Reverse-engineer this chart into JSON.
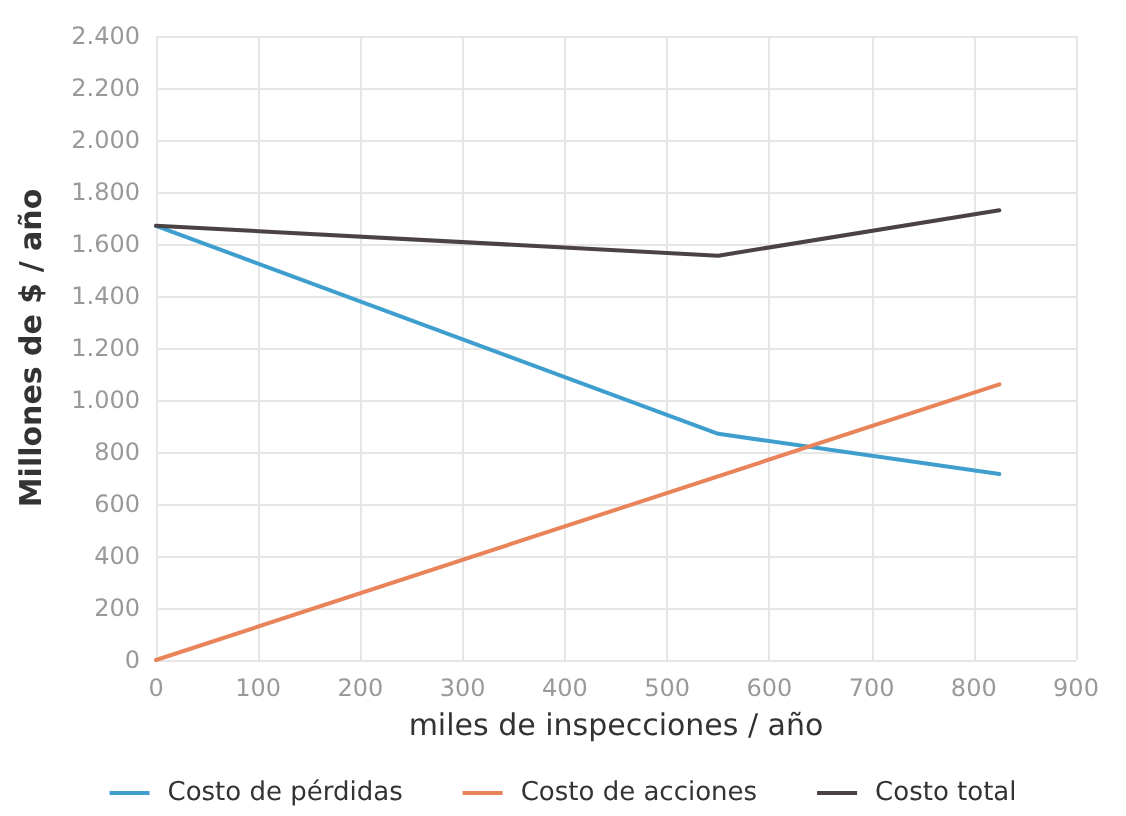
{
  "chart_data": {
    "type": "line",
    "xlabel": "miles de inspecciones / año",
    "ylabel": "Millones de $ / año",
    "xlim": [
      0,
      900
    ],
    "xticks": [
      0,
      100,
      200,
      300,
      400,
      500,
      600,
      700,
      800,
      900
    ],
    "ylim": [
      0,
      2400
    ],
    "yticks": [
      0,
      200,
      400,
      600,
      800,
      {
        "value": 1000,
        "label": "1.000"
      },
      {
        "value": 1200,
        "label": "1.200"
      },
      {
        "value": 1400,
        "label": "1.400"
      },
      {
        "value": 1600,
        "label": "1.600"
      },
      {
        "value": 1800,
        "label": "1.800"
      },
      {
        "value": 2000,
        "label": "2.000"
      },
      {
        "value": 2200,
        "label": "2.200"
      },
      {
        "value": 2400,
        "label": "2.400"
      }
    ],
    "series": [
      {
        "name": "Costo de pérdidas",
        "color": "#3e9fcf",
        "x": [
          0,
          550,
          825
        ],
        "values": [
          1670,
          870,
          715
        ]
      },
      {
        "name": "Costo de acciones",
        "color": "#e8835a",
        "x": [
          0,
          825
        ],
        "values": [
          0,
          1060
        ]
      },
      {
        "name": "Costo total",
        "color": "#4a4244",
        "x": [
          0,
          550,
          825
        ],
        "values": [
          1670,
          1555,
          1730
        ]
      }
    ],
    "grid": true,
    "legend": "bottom",
    "marker": "none",
    "line_style": "solid"
  }
}
